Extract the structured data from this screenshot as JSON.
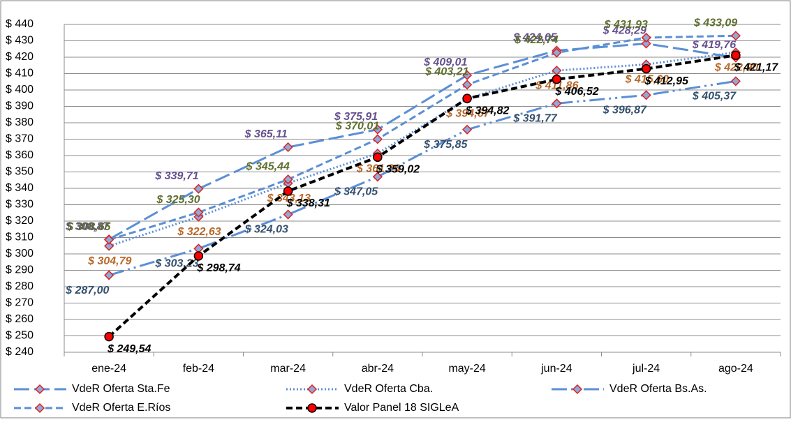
{
  "chart_data": {
    "type": "line",
    "categories": [
      "ene-24",
      "feb-24",
      "mar-24",
      "abr-24",
      "may-24",
      "jun-24",
      "jul-24",
      "ago-24"
    ],
    "ylim": [
      240,
      440
    ],
    "yticks": [
      {
        "value": 240,
        "label": "$ 240"
      },
      {
        "value": 250,
        "label": "$ 250"
      },
      {
        "value": 260,
        "label": "$ 260"
      },
      {
        "value": 270,
        "label": "$ 270"
      },
      {
        "value": 280,
        "label": "$ 280"
      },
      {
        "value": 290,
        "label": "$ 290"
      },
      {
        "value": 300,
        "label": "$ 300"
      },
      {
        "value": 310,
        "label": "$ 310"
      },
      {
        "value": 320,
        "label": "$ 320"
      },
      {
        "value": 330,
        "label": "$ 330"
      },
      {
        "value": 340,
        "label": "$ 340"
      },
      {
        "value": 350,
        "label": "$ 350"
      },
      {
        "value": 360,
        "label": "$ 360"
      },
      {
        "value": 370,
        "label": "$ 370"
      },
      {
        "value": 380,
        "label": "$ 380"
      },
      {
        "value": 390,
        "label": "$ 390"
      },
      {
        "value": 400,
        "label": "$ 400"
      },
      {
        "value": 410,
        "label": "$ 410"
      },
      {
        "value": 420,
        "label": "$ 420"
      },
      {
        "value": 430,
        "label": "$ 430"
      },
      {
        "value": 440,
        "label": "$ 440"
      }
    ],
    "grid": true,
    "series": [
      {
        "name": "VdeR Oferta Sta.Fe",
        "color": "#5b8fd6",
        "label_color": "#65508f",
        "values": [
          308.87,
          339.71,
          365.11,
          375.91,
          409.01,
          424.05,
          428.29,
          419.76
        ],
        "value_labels": [
          "$ 308,87",
          "$ 339,71",
          "$ 365,11",
          "$ 375,91",
          "$ 409,01",
          "$ 424,05",
          "$ 428,29",
          "$ 419,76"
        ]
      },
      {
        "name": "VdeR Oferta Cba.",
        "color": "#5b8fd6",
        "label_color": "#b8692a",
        "values": [
          304.79,
          322.63,
          343.13,
          361.26,
          394.67,
          411.86,
          415.6,
          422.9
        ],
        "value_labels": [
          "$ 304,79",
          "$ 322,63",
          "$ 343,13",
          "$ 361,26",
          "$ 394,67",
          "$ 411,86",
          "$ 415,60",
          "$ 422,90"
        ]
      },
      {
        "name": "VdeR Oferta Bs.As.",
        "color": "#5b8fd6",
        "label_color": "#34506e",
        "values": [
          287.0,
          303.23,
          324.03,
          347.05,
          375.85,
          391.77,
          396.87,
          405.37
        ],
        "value_labels": [
          "$ 287,00",
          "$ 303,23",
          "$ 324,03",
          "$ 347,05",
          "$ 375,85",
          "$ 391,77",
          "$ 396,87",
          "$ 405,37"
        ]
      },
      {
        "name": "VdeR Oferta E.Ríos",
        "color": "#5b8fd6",
        "label_color": "#5e6f2e",
        "values": [
          308.65,
          325.3,
          345.44,
          370.01,
          403.21,
          422.74,
          431.93,
          433.09
        ],
        "value_labels": [
          "$ 308,65",
          "$ 325,30",
          "$ 345,44",
          "$ 370,01",
          "$ 403,21",
          "$ 422,74",
          "$ 431,93",
          "$ 433,09"
        ]
      },
      {
        "name": "Valor Panel 18 SIGLeA",
        "color": "#000000",
        "label_color": "#000000",
        "values": [
          249.54,
          298.74,
          338.31,
          359.02,
          394.82,
          406.52,
          412.95,
          421.17
        ],
        "value_labels": [
          "$ 249,54",
          "$ 298,74",
          "$ 338,31",
          "$ 359,02",
          "$ 394,82",
          "$ 406,52",
          "$ 412,95",
          "$ 421,17"
        ]
      }
    ]
  }
}
